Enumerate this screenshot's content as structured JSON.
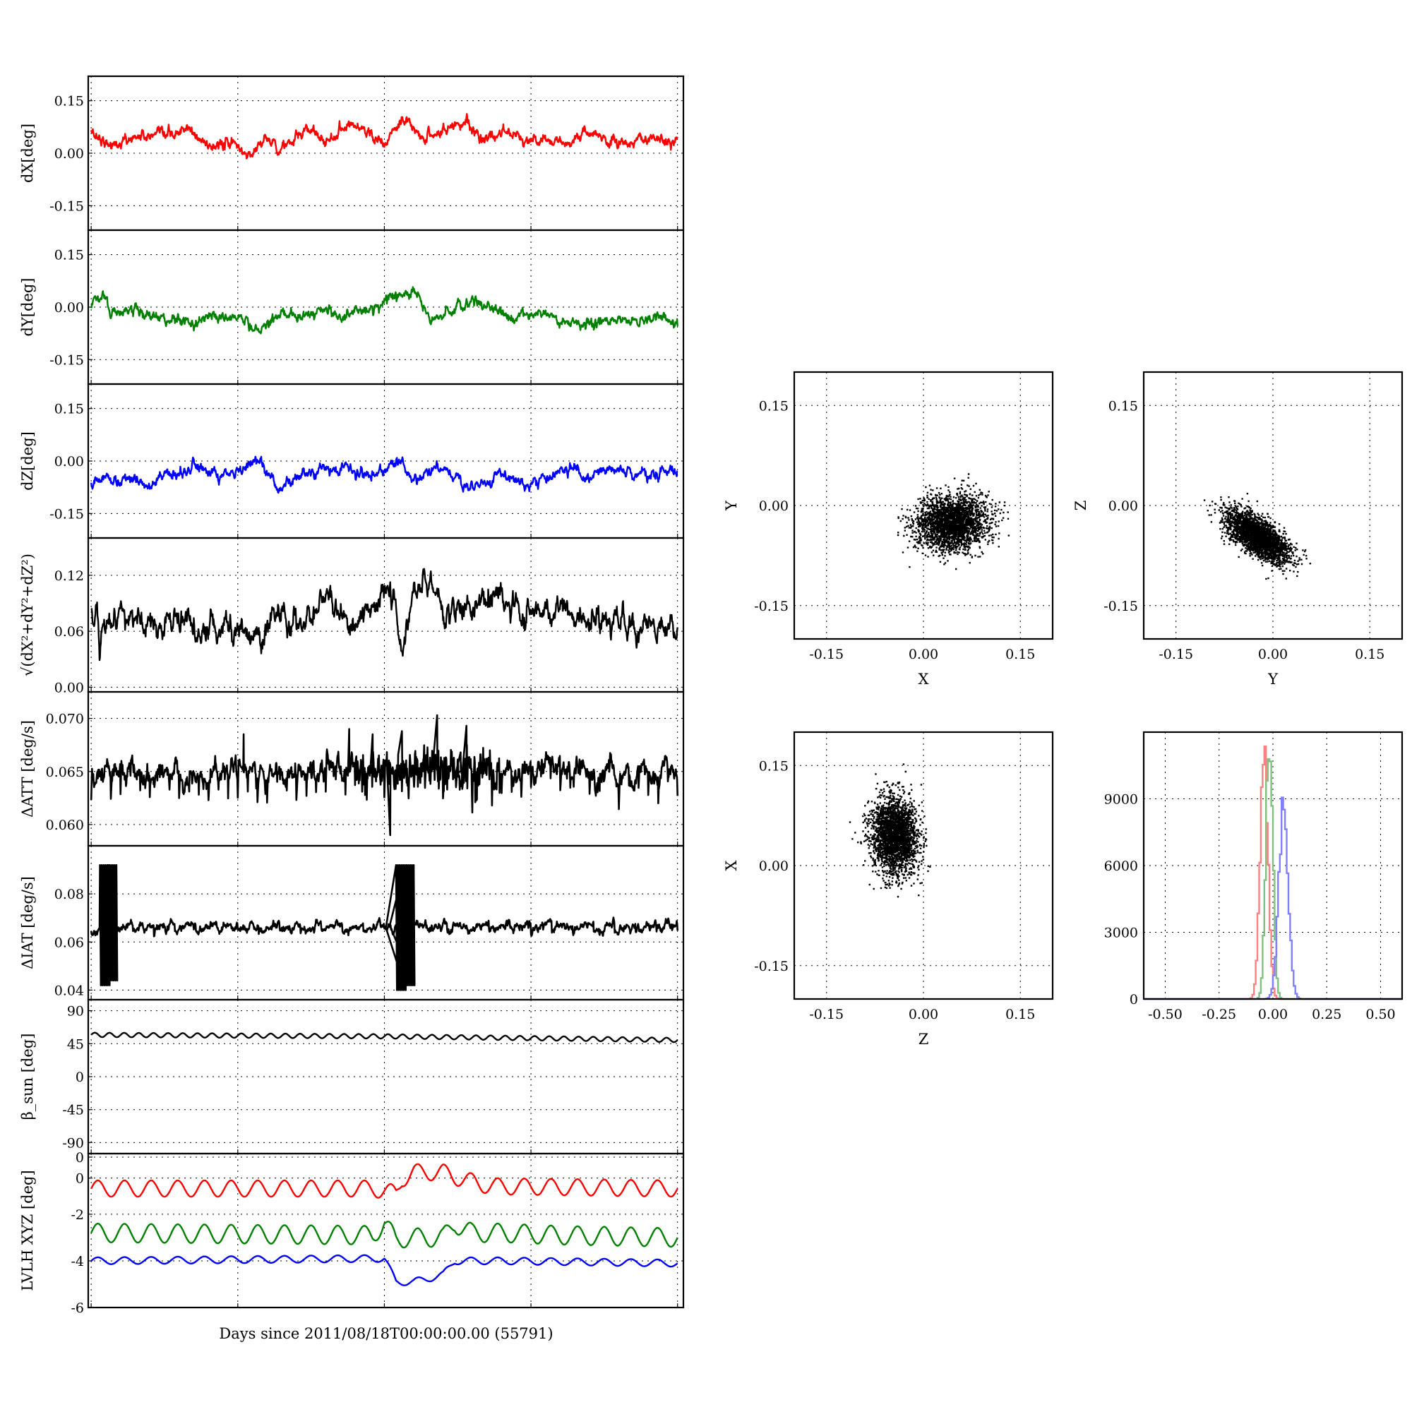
{
  "xlabel": "Days since 2011/08/18T00:00:00.00 (55791)",
  "chart_data": [
    {
      "type": "line",
      "ylabel": "dX[deg]",
      "ylim": [
        -0.22,
        0.22
      ],
      "yticks": [
        "-0.15",
        "0.00",
        "0.15"
      ],
      "ytick_values": [
        -0.15,
        0,
        0.15
      ],
      "grid": true,
      "series": [
        {
          "color": "#ff0000",
          "smoothness": 0.55,
          "noise": 0.006,
          "x": [
            0,
            0.04,
            0.08,
            0.12,
            0.16,
            0.2,
            0.24,
            0.27,
            0.29,
            0.33,
            0.38,
            0.4,
            0.44,
            0.49,
            0.5,
            0.53,
            0.56,
            0.6,
            0.64,
            0.67,
            0.72,
            0.76,
            0.8,
            0.85,
            0.9,
            0.95,
            1.0
          ],
          "y": [
            0.06,
            0.02,
            0.05,
            0.04,
            0.07,
            0.02,
            0.03,
            -0.01,
            0.04,
            0.02,
            0.07,
            0.03,
            0.09,
            0.05,
            0.02,
            0.09,
            0.05,
            0.06,
            0.1,
            0.03,
            0.07,
            0.03,
            0.03,
            0.05,
            0.03,
            0.04,
            0.03
          ]
        }
      ]
    },
    {
      "type": "line",
      "ylabel": "dY[deg]",
      "ylim": [
        -0.22,
        0.22
      ],
      "yticks": [
        "-0.15",
        "0.00",
        "0.15"
      ],
      "ytick_values": [
        -0.15,
        0,
        0.15
      ],
      "grid": true,
      "series": [
        {
          "color": "#008000",
          "smoothness": 0.55,
          "noise": 0.006,
          "x": [
            0,
            0.015,
            0.04,
            0.08,
            0.12,
            0.17,
            0.22,
            0.26,
            0.29,
            0.33,
            0.37,
            0.4,
            0.44,
            0.52,
            0.55,
            0.58,
            0.6,
            0.65,
            0.7,
            0.76,
            0.8,
            0.84,
            0.88,
            0.92,
            0.96,
            1.0
          ],
          "y": [
            0.0,
            0.03,
            -0.01,
            -0.02,
            -0.03,
            -0.04,
            -0.02,
            -0.04,
            -0.06,
            -0.01,
            -0.03,
            -0.01,
            -0.03,
            0.03,
            0.05,
            -0.03,
            -0.03,
            0.02,
            -0.03,
            -0.01,
            -0.04,
            -0.05,
            -0.03,
            -0.05,
            -0.03,
            -0.04
          ]
        }
      ]
    },
    {
      "type": "line",
      "ylabel": "dZ[deg]",
      "ylim": [
        -0.22,
        0.22
      ],
      "yticks": [
        "-0.15",
        "0.00",
        "0.15"
      ],
      "ytick_values": [
        -0.15,
        0,
        0.15
      ],
      "grid": true,
      "series": [
        {
          "color": "#0000ff",
          "smoothness": 0.55,
          "noise": 0.006,
          "x": [
            0,
            0.05,
            0.1,
            0.15,
            0.18,
            0.22,
            0.26,
            0.29,
            0.32,
            0.36,
            0.4,
            0.44,
            0.48,
            0.52,
            0.55,
            0.6,
            0.64,
            0.7,
            0.74,
            0.8,
            0.85,
            0.9,
            0.95,
            1.0
          ],
          "y": [
            -0.06,
            -0.05,
            -0.06,
            -0.04,
            -0.01,
            -0.05,
            -0.03,
            0.0,
            -0.08,
            -0.04,
            -0.03,
            -0.02,
            -0.04,
            -0.01,
            -0.05,
            -0.02,
            -0.08,
            -0.04,
            -0.07,
            -0.03,
            -0.04,
            -0.02,
            -0.04,
            -0.03
          ]
        }
      ]
    },
    {
      "type": "line",
      "ylabel": "√(dX²+dY²+dZ²)",
      "ylim": [
        -0.005,
        0.16
      ],
      "yticks": [
        "0.00",
        "0.06",
        "0.12"
      ],
      "ytick_values": [
        0,
        0.06,
        0.12
      ],
      "grid": true,
      "series": [
        {
          "color": "#000000",
          "smoothness": 0.55,
          "noise": 0.005,
          "x": [
            0,
            0.01,
            0.015,
            0.02,
            0.05,
            0.1,
            0.15,
            0.2,
            0.25,
            0.29,
            0.32,
            0.35,
            0.4,
            0.42,
            0.45,
            0.49,
            0.5,
            0.52,
            0.53,
            0.55,
            0.58,
            0.6,
            0.65,
            0.69,
            0.72,
            0.75,
            0.8,
            0.85,
            0.9,
            0.95,
            1.0
          ],
          "y": [
            0.08,
            0.07,
            0.04,
            0.07,
            0.07,
            0.07,
            0.07,
            0.065,
            0.07,
            0.06,
            0.08,
            0.06,
            0.1,
            0.08,
            0.07,
            0.1,
            0.11,
            0.08,
            0.04,
            0.1,
            0.12,
            0.08,
            0.09,
            0.1,
            0.08,
            0.08,
            0.08,
            0.07,
            0.07,
            0.065,
            0.06
          ]
        }
      ]
    },
    {
      "type": "line",
      "ylabel": "ΔATT [deg/s]",
      "ylim": [
        0.058,
        0.0725
      ],
      "yticks": [
        "0.060",
        "0.065",
        "0.070"
      ],
      "ytick_values": [
        0.06,
        0.065,
        0.07
      ],
      "grid": true,
      "series": [
        {
          "color": "#000000",
          "smoothness": 0.9,
          "noise": 0.0004,
          "x": [
            0,
            0.1,
            0.2,
            0.3,
            0.4,
            0.45,
            0.5,
            0.55,
            0.6,
            0.7,
            0.8,
            0.9,
            1.0
          ],
          "y": [
            0.0648,
            0.065,
            0.0648,
            0.065,
            0.065,
            0.0652,
            0.065,
            0.0652,
            0.065,
            0.0651,
            0.065,
            0.065,
            0.0649
          ],
          "spikes": [
            [
              0.26,
              0.0685
            ],
            [
              0.44,
              0.069
            ],
            [
              0.48,
              0.0685
            ],
            [
              0.51,
              0.059
            ],
            [
              0.53,
              0.0688
            ],
            [
              0.59,
              0.0703
            ],
            [
              0.64,
              0.0693
            ],
            [
              0.63,
              0.0668
            ]
          ]
        }
      ]
    },
    {
      "type": "line",
      "ylabel": "ΔIAT [deg/s]",
      "ylim": [
        0.036,
        0.1
      ],
      "yticks": [
        "0.04",
        "0.06",
        "0.08"
      ],
      "ytick_values": [
        0.04,
        0.06,
        0.08
      ],
      "grid": true,
      "series": [
        {
          "color": "#000000",
          "smoothness": 0.9,
          "noise": 0.0007,
          "x": [
            0,
            0.2,
            0.4,
            0.6,
            0.8,
            1.0
          ],
          "y": [
            0.066,
            0.066,
            0.066,
            0.066,
            0.066,
            0.066
          ],
          "bursts": [
            [
              0.015,
              0.092,
              0.042
            ],
            [
              0.028,
              0.092,
              0.044
            ],
            [
              0.52,
              0.092,
              0.04
            ],
            [
              0.535,
              0.092,
              0.042
            ]
          ]
        }
      ]
    },
    {
      "type": "line",
      "ylabel": "β_sun [deg]",
      "ylim": [
        -105,
        105
      ],
      "yticks": [
        "-90",
        "-45",
        "0",
        "45",
        "90"
      ],
      "ytick_values": [
        -90,
        -45,
        0,
        45,
        90
      ],
      "grid": true,
      "series": [
        {
          "color": "#000000",
          "smoothness": 1,
          "noise": 0,
          "wave": [
            3,
            40
          ],
          "x": [
            0,
            0.5,
            1.0
          ],
          "y": [
            57,
            55,
            50
          ]
        }
      ]
    },
    {
      "type": "line",
      "ylabel": "LVLH XYZ [deg]",
      "ylim": [
        -6,
        0.6
      ],
      "yticks": [
        "-6",
        "-4",
        "-2",
        "0",
        "0"
      ],
      "ytick_values": [
        -6,
        -4,
        -2,
        -0.45,
        0.45
      ],
      "grid": true,
      "series": [
        {
          "color": "#ff0000",
          "smoothness": 0.7,
          "noise": 0,
          "wave": [
            0.35,
            22
          ],
          "x": [
            0,
            0.48,
            0.5,
            0.52,
            0.53,
            0.55,
            0.6,
            0.62,
            0.65,
            0.68,
            1.0
          ],
          "y": [
            -0.9,
            -0.9,
            -1.0,
            -1.1,
            -0.5,
            -0.2,
            -0.2,
            -0.4,
            -0.6,
            -0.8,
            -0.9
          ]
        },
        {
          "color": "#008000",
          "smoothness": 0.7,
          "noise": 0,
          "wave": [
            0.4,
            22
          ],
          "x": [
            0,
            0.48,
            0.5,
            0.52,
            0.54,
            0.6,
            0.62,
            0.65,
            0.7,
            0.8,
            1.0
          ],
          "y": [
            -2.8,
            -2.9,
            -2.4,
            -3.1,
            -3.0,
            -3.0,
            -2.4,
            -2.8,
            -2.8,
            -2.9,
            -3.0
          ]
        },
        {
          "color": "#0000ff",
          "smoothness": 0.7,
          "noise": 0,
          "wave": [
            0.15,
            22
          ],
          "x": [
            0,
            0.48,
            0.5,
            0.52,
            0.55,
            0.6,
            0.62,
            0.65,
            0.7,
            1.0
          ],
          "y": [
            -4.0,
            -3.9,
            -3.9,
            -4.9,
            -4.9,
            -4.6,
            -4.0,
            -4.0,
            -4.0,
            -4.1
          ]
        }
      ]
    },
    {
      "type": "scatter",
      "xlabel": "X",
      "ylabel": "Y",
      "xlim": [
        -0.2,
        0.2
      ],
      "ylim": [
        -0.2,
        0.2
      ],
      "xticks": [
        "-0.15",
        "0.00",
        "0.15"
      ],
      "yticks": [
        "-0.15",
        "0.00",
        "0.15"
      ],
      "tick_values": [
        -0.15,
        0,
        0.15
      ],
      "grid": true,
      "cloud": {
        "cx": 0.045,
        "cy": -0.025,
        "sx": 0.028,
        "sy": 0.02,
        "rot": 0.15
      }
    },
    {
      "type": "scatter",
      "xlabel": "Y",
      "ylabel": "Z",
      "xlim": [
        -0.2,
        0.2
      ],
      "ylim": [
        -0.2,
        0.2
      ],
      "xticks": [
        "-0.15",
        "0.00",
        "0.15"
      ],
      "yticks": [
        "-0.15",
        "0.00",
        "0.15"
      ],
      "tick_values": [
        -0.15,
        0,
        0.15
      ],
      "grid": true,
      "cloud": {
        "cx": -0.025,
        "cy": -0.045,
        "sx": 0.028,
        "sy": 0.012,
        "rot": -0.6
      }
    },
    {
      "type": "scatter",
      "xlabel": "Z",
      "ylabel": "X",
      "xlim": [
        -0.2,
        0.2
      ],
      "ylim": [
        -0.2,
        0.2
      ],
      "xticks": [
        "-0.15",
        "0.00",
        "0.15"
      ],
      "yticks": [
        "-0.15",
        "0.00",
        "0.15"
      ],
      "tick_values": [
        -0.15,
        0,
        0.15
      ],
      "grid": true,
      "cloud": {
        "cx": -0.045,
        "cy": 0.045,
        "sx": 0.018,
        "sy": 0.028,
        "rot": 0.1
      }
    },
    {
      "type": "histogram",
      "xlim": [
        -0.6,
        0.6
      ],
      "ylim": [
        0,
        12000
      ],
      "xticks": [
        "-0.50",
        "-0.25",
        "0.00",
        "0.25",
        "0.50"
      ],
      "xtick_values": [
        -0.5,
        -0.25,
        0,
        0.25,
        0.5
      ],
      "yticks": [
        "0",
        "3000",
        "6000",
        "9000"
      ],
      "ytick_values": [
        0,
        3000,
        6000,
        9000
      ],
      "grid": true,
      "series": [
        {
          "color": "#ff8080",
          "mu": -0.045,
          "sigma": 0.018,
          "peak": 11400
        },
        {
          "color": "#80c080",
          "mu": -0.02,
          "sigma": 0.016,
          "peak": 12000
        },
        {
          "color": "#8080ff",
          "mu": 0.045,
          "sigma": 0.022,
          "peak": 8600
        }
      ]
    }
  ]
}
